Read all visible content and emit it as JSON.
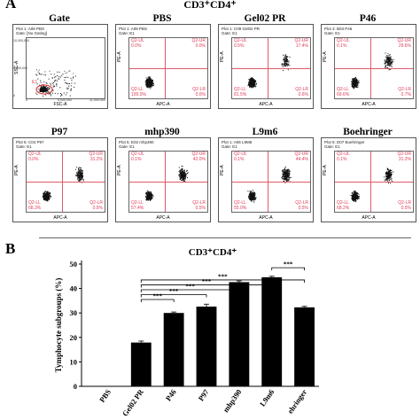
{
  "figure": {
    "panel_a": "A",
    "panel_b": "B",
    "title_a": "CD3⁺CD4⁺",
    "title_b": "CD3⁺CD4⁺"
  },
  "gate_plot": {
    "title": "Gate",
    "hdr1": "Plot 1: A08 PBS",
    "hdr2": "Gate: [No Gating]",
    "ylabel": "SSC-A",
    "xlabel": "FSC-A",
    "y_ticks": [
      "10,000,000",
      "5,000,000",
      "0"
    ],
    "x_ticks": [
      "0",
      "5,000,000",
      "11,000,000"
    ],
    "gate": "E1"
  },
  "plots": [
    {
      "title": "PBS",
      "hdr1": "Plot 1: A08 PBS",
      "hdr2": "Gate: E1",
      "ul": "Q2-UL",
      "ul_val": "0.0%",
      "ur": "Q2-UR",
      "ur_val": "0.0%",
      "ll": "Q2-LL",
      "ll_val": "100.0%",
      "lr": "Q2-LR",
      "lr_val": "0.0%"
    },
    {
      "title": "Gel02 PR",
      "hdr1": "Plot 1: C09 Gel02 PR",
      "hdr2": "Gate: E1",
      "ul": "Q2-UL",
      "ul_val": "0.5%",
      "ur": "Q2-UR",
      "ur_val": "17.4%",
      "ll": "Q2-LL",
      "ll_val": "81.5%",
      "lr": "Q2-LR",
      "lr_val": "0.6%"
    },
    {
      "title": "P46",
      "hdr1": "Plot 3: B03 P46",
      "hdr2": "Gate: E1",
      "ul": "Q2-UL",
      "ul_val": "0.1%",
      "ur": "Q2-UR",
      "ur_val": "29.6%",
      "ll": "Q2-LL",
      "ll_val": "69.6%",
      "lr": "Q2-LR",
      "lr_val": "0.7%"
    },
    {
      "title": "P97",
      "hdr1": "Plot 5: C04 P97",
      "hdr2": "Gate: E1",
      "ul": "Q2-UL",
      "ul_val": "0.0%",
      "ur": "Q2-UR",
      "ur_val": "31.2%",
      "ll": "Q2-LL",
      "ll_val": "68.3%",
      "lr": "Q2-LR",
      "lr_val": "0.5%"
    },
    {
      "title": "mhp390",
      "hdr1": "Plot 5: E02 mhp390",
      "hdr2": "Gate: E1",
      "ul": "Q2-UL",
      "ul_val": "0.1%",
      "ur": "Q2-UR",
      "ur_val": "42.0%",
      "ll": "Q2-LL",
      "ll_val": "57.4%",
      "lr": "Q2-LR",
      "lr_val": "0.5%"
    },
    {
      "title": "L9m6",
      "hdr1": "Plot 1: A06 L9M6",
      "hdr2": "Gate: E1",
      "ul": "Q2-UL",
      "ul_val": "0.1%",
      "ur": "Q2-UR",
      "ur_val": "44.4%",
      "ll": "Q2-LL",
      "ll_val": "55.0%",
      "lr": "Q2-LR",
      "lr_val": "0.5%"
    },
    {
      "title": "Boehringer",
      "hdr1": "Plot 5: D07 Boehringer",
      "hdr2": "Gate: E1",
      "ul": "Q2-UL",
      "ul_val": "0.1%",
      "ur": "Q2-UR",
      "ur_val": "31.2%",
      "ll": "Q2-LL",
      "ll_val": "68.2%",
      "lr": "Q2-LR",
      "lr_val": "0.5%"
    }
  ],
  "chart_data": {
    "type": "bar",
    "title": "CD3⁺CD4⁺",
    "ylabel": "Tymphocyte subgroups (%)",
    "xlabel": "",
    "categories": [
      "PBS",
      "Gel02 PR",
      "P46",
      "P97",
      "mhp390",
      "L9m6",
      "Boehringer"
    ],
    "tick_labels": [
      "PBS",
      "Gel02 PR",
      "P46",
      "P97",
      "mhp390",
      "L9m6",
      "ehringer"
    ],
    "values": [
      0,
      17.9,
      30.0,
      32.6,
      42.6,
      44.6,
      32.3
    ],
    "errors": [
      0,
      0.6,
      0.4,
      1.0,
      0.5,
      0.4,
      0.4
    ],
    "ylim": [
      0,
      50
    ],
    "yticks": [
      0,
      10,
      20,
      30,
      40,
      50
    ],
    "bar_color": "#000000",
    "significance": [
      {
        "from": "Gel02 PR",
        "to": "P46",
        "label": "***"
      },
      {
        "from": "Gel02 PR",
        "to": "P97",
        "label": "***"
      },
      {
        "from": "Gel02 PR",
        "to": "mhp390",
        "label": "***"
      },
      {
        "from": "Gel02 PR",
        "to": "L9m6",
        "label": "***"
      },
      {
        "from": "Gel02 PR",
        "to": "Boehringer",
        "label": "***"
      },
      {
        "from": "L9m6",
        "to": "Boehringer",
        "label": "***"
      }
    ]
  }
}
